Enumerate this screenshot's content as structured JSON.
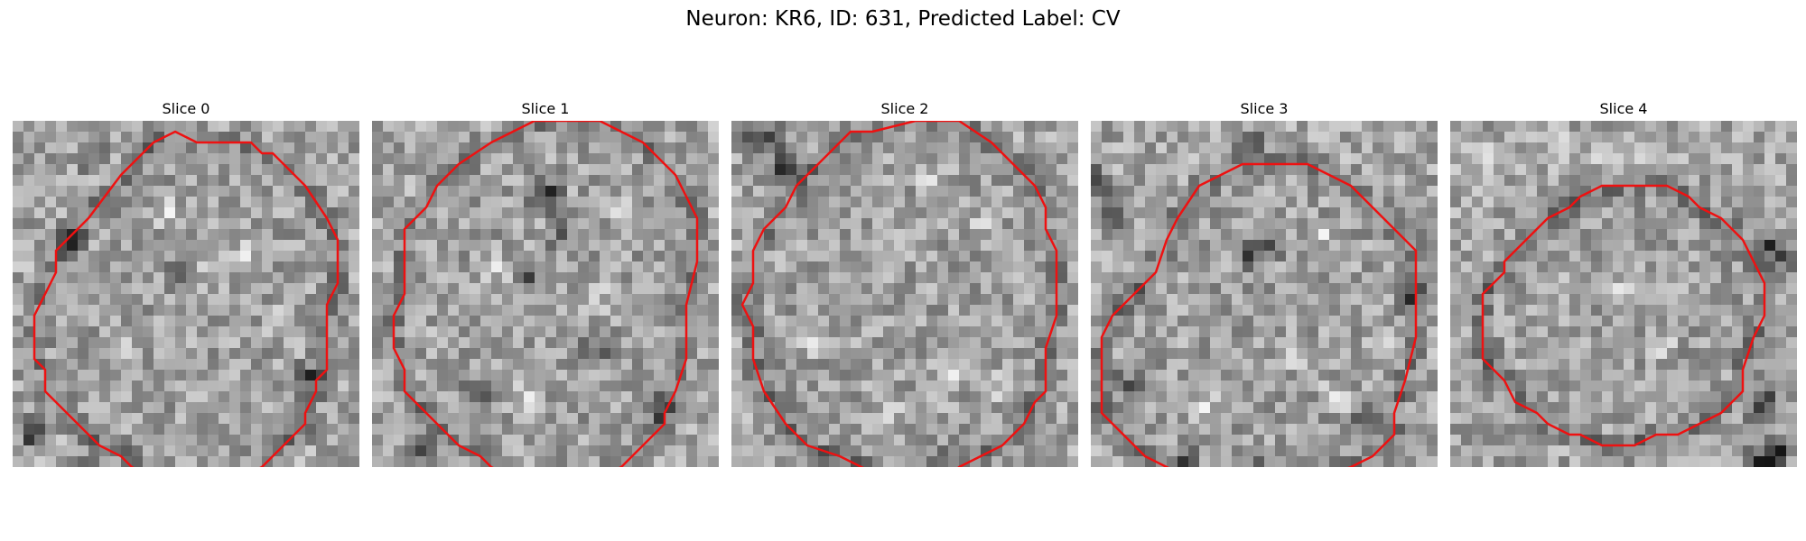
{
  "figure": {
    "title": "Neuron: KR6, ID: 631, Predicted Label: CV"
  },
  "colors": {
    "contour": "#ee1111",
    "background": "#ffffff"
  },
  "panels": [
    {
      "title": "Slice 0",
      "contour": [
        [
          30,
          15
        ],
        [
          29,
          17
        ],
        [
          29,
          23
        ],
        [
          28,
          24
        ],
        [
          28,
          25
        ],
        [
          27,
          27
        ],
        [
          27,
          28
        ],
        [
          25,
          30
        ],
        [
          23,
          32
        ],
        [
          21,
          33
        ],
        [
          20,
          33
        ],
        [
          13,
          33
        ],
        [
          11,
          32
        ],
        [
          10,
          31
        ],
        [
          8,
          30
        ],
        [
          5,
          27
        ],
        [
          3,
          25
        ],
        [
          3,
          23
        ],
        [
          2,
          22
        ],
        [
          2,
          18
        ],
        [
          3,
          16
        ],
        [
          4,
          14
        ],
        [
          4,
          12
        ],
        [
          7,
          9
        ],
        [
          10,
          5
        ],
        [
          12,
          3
        ],
        [
          13,
          2
        ],
        [
          15,
          1
        ],
        [
          17,
          2
        ],
        [
          19,
          2
        ],
        [
          22,
          2
        ],
        [
          23,
          3
        ],
        [
          24,
          3
        ],
        [
          25,
          4
        ],
        [
          27,
          6
        ],
        [
          29,
          9
        ],
        [
          30,
          11
        ]
      ],
      "dark_spots": [
        [
          1,
          28
        ],
        [
          2,
          29
        ],
        [
          6,
          32
        ],
        [
          7,
          3
        ],
        [
          15,
          13
        ],
        [
          27,
          23
        ],
        [
          5,
          11
        ]
      ],
      "bright_spots": [
        [
          14,
          8
        ],
        [
          18,
          13
        ],
        [
          21,
          12
        ],
        [
          9,
          20
        ],
        [
          16,
          25
        ],
        [
          24,
          18
        ]
      ]
    },
    {
      "title": "Slice 1",
      "contour": [
        [
          30,
          9
        ],
        [
          30,
          13
        ],
        [
          29,
          17
        ],
        [
          29,
          22
        ],
        [
          28,
          25
        ],
        [
          27,
          27
        ],
        [
          27,
          28
        ],
        [
          25,
          30
        ],
        [
          23,
          32
        ],
        [
          21,
          33
        ],
        [
          20,
          33
        ],
        [
          13,
          33
        ],
        [
          11,
          32
        ],
        [
          10,
          31
        ],
        [
          8,
          30
        ],
        [
          5,
          27
        ],
        [
          3,
          25
        ],
        [
          3,
          23
        ],
        [
          2,
          21
        ],
        [
          2,
          18
        ],
        [
          3,
          16
        ],
        [
          3,
          14
        ],
        [
          3,
          10
        ],
        [
          5,
          8
        ],
        [
          6,
          6
        ],
        [
          7,
          5
        ],
        [
          8,
          4
        ],
        [
          11,
          2
        ],
        [
          13,
          1
        ],
        [
          15,
          0
        ],
        [
          19,
          0
        ],
        [
          21,
          0
        ],
        [
          23,
          1
        ],
        [
          25,
          2
        ],
        [
          27,
          4
        ],
        [
          28,
          5
        ],
        [
          29,
          7
        ]
      ],
      "dark_spots": [
        [
          15,
          7
        ],
        [
          16,
          6
        ],
        [
          14,
          14
        ],
        [
          20,
          21
        ],
        [
          26,
          26
        ],
        [
          9,
          25
        ],
        [
          4,
          30
        ],
        [
          17,
          10
        ]
      ],
      "bright_spots": [
        [
          23,
          8
        ],
        [
          11,
          13
        ],
        [
          20,
          16
        ],
        [
          6,
          20
        ],
        [
          14,
          25
        ],
        [
          25,
          14
        ]
      ]
    },
    {
      "title": "Slice 2",
      "contour": [
        [
          30,
          14
        ],
        [
          30,
          18
        ],
        [
          29,
          21
        ],
        [
          29,
          25
        ],
        [
          28,
          26
        ],
        [
          27,
          28
        ],
        [
          25,
          30
        ],
        [
          23,
          31
        ],
        [
          21,
          32
        ],
        [
          20,
          33
        ],
        [
          18,
          33
        ],
        [
          14,
          33
        ],
        [
          12,
          32
        ],
        [
          10,
          31
        ],
        [
          7,
          30
        ],
        [
          5,
          28
        ],
        [
          3,
          25
        ],
        [
          2,
          22
        ],
        [
          2,
          19
        ],
        [
          1,
          17
        ],
        [
          2,
          15
        ],
        [
          2,
          12
        ],
        [
          3,
          10
        ],
        [
          5,
          8
        ],
        [
          6,
          6
        ],
        [
          8,
          4
        ],
        [
          10,
          2
        ],
        [
          11,
          1
        ],
        [
          13,
          1
        ],
        [
          17,
          0
        ],
        [
          21,
          0
        ],
        [
          24,
          2
        ],
        [
          26,
          4
        ],
        [
          28,
          6
        ],
        [
          29,
          8
        ],
        [
          29,
          10
        ],
        [
          30,
          12
        ]
      ],
      "dark_spots": [
        [
          1,
          1
        ],
        [
          2,
          2
        ],
        [
          3,
          1
        ],
        [
          5,
          3
        ],
        [
          4,
          4
        ],
        [
          27,
          31
        ],
        [
          18,
          31
        ]
      ],
      "bright_spots": [
        [
          18,
          5
        ],
        [
          23,
          9
        ],
        [
          25,
          13
        ],
        [
          7,
          20
        ],
        [
          14,
          27
        ],
        [
          20,
          23
        ],
        [
          24,
          24
        ]
      ]
    },
    {
      "title": "Slice 3",
      "contour": [
        [
          30,
          15
        ],
        [
          30,
          20
        ],
        [
          29,
          24
        ],
        [
          28,
          27
        ],
        [
          28,
          29
        ],
        [
          26,
          31
        ],
        [
          24,
          32
        ],
        [
          21,
          33
        ],
        [
          20,
          34
        ],
        [
          18,
          34
        ],
        [
          11,
          34
        ],
        [
          9,
          33
        ],
        [
          7,
          32
        ],
        [
          5,
          31
        ],
        [
          3,
          29
        ],
        [
          2,
          28
        ],
        [
          1,
          27
        ],
        [
          1,
          24
        ],
        [
          1,
          20
        ],
        [
          2,
          18
        ],
        [
          3,
          17
        ],
        [
          5,
          15
        ],
        [
          6,
          14
        ],
        [
          7,
          11
        ],
        [
          8,
          9
        ],
        [
          10,
          6
        ],
        [
          12,
          5
        ],
        [
          14,
          4
        ],
        [
          16,
          4
        ],
        [
          20,
          4
        ],
        [
          22,
          5
        ],
        [
          24,
          6
        ],
        [
          26,
          8
        ],
        [
          28,
          10
        ],
        [
          30,
          12
        ],
        [
          30,
          13
        ]
      ],
      "dark_spots": [
        [
          0,
          5
        ],
        [
          1,
          6
        ],
        [
          2,
          8
        ],
        [
          14,
          2
        ],
        [
          15,
          1
        ],
        [
          3,
          24
        ],
        [
          8,
          31
        ],
        [
          15,
          32
        ],
        [
          18,
          32
        ],
        [
          23,
          32
        ],
        [
          25,
          27
        ],
        [
          29,
          16
        ],
        [
          14,
          12
        ],
        [
          16,
          11
        ]
      ],
      "bright_spots": [
        [
          26,
          20
        ],
        [
          21,
          10
        ],
        [
          8,
          20
        ],
        [
          18,
          21
        ],
        [
          10,
          26
        ],
        [
          22,
          25
        ]
      ]
    },
    {
      "title": "Slice 4",
      "contour": [
        [
          28,
          13
        ],
        [
          29,
          15
        ],
        [
          29,
          18
        ],
        [
          28,
          20
        ],
        [
          27,
          23
        ],
        [
          27,
          25
        ],
        [
          26,
          26
        ],
        [
          25,
          27
        ],
        [
          23,
          28
        ],
        [
          21,
          29
        ],
        [
          19,
          29
        ],
        [
          17,
          30
        ],
        [
          14,
          30
        ],
        [
          12,
          29
        ],
        [
          11,
          29
        ],
        [
          9,
          28
        ],
        [
          8,
          27
        ],
        [
          6,
          26
        ],
        [
          5,
          24
        ],
        [
          3,
          22
        ],
        [
          3,
          18
        ],
        [
          3,
          16
        ],
        [
          4,
          15
        ],
        [
          5,
          14
        ],
        [
          5,
          13
        ],
        [
          6,
          12
        ],
        [
          8,
          10
        ],
        [
          9,
          9
        ],
        [
          11,
          8
        ],
        [
          12,
          7
        ],
        [
          14,
          6
        ],
        [
          17,
          6
        ],
        [
          20,
          6
        ],
        [
          22,
          7
        ],
        [
          23,
          8
        ],
        [
          25,
          9
        ],
        [
          26,
          10
        ],
        [
          27,
          11
        ]
      ],
      "dark_spots": [
        [
          29,
          29
        ],
        [
          30,
          30
        ],
        [
          29,
          31
        ],
        [
          28,
          31
        ],
        [
          29,
          11
        ],
        [
          30,
          12
        ],
        [
          28,
          26
        ],
        [
          29,
          25
        ]
      ],
      "bright_spots": [
        [
          4,
          3
        ],
        [
          9,
          2
        ],
        [
          14,
          3
        ],
        [
          18,
          2
        ],
        [
          15,
          15
        ],
        [
          10,
          14
        ],
        [
          19,
          20
        ],
        [
          12,
          23
        ]
      ]
    }
  ]
}
